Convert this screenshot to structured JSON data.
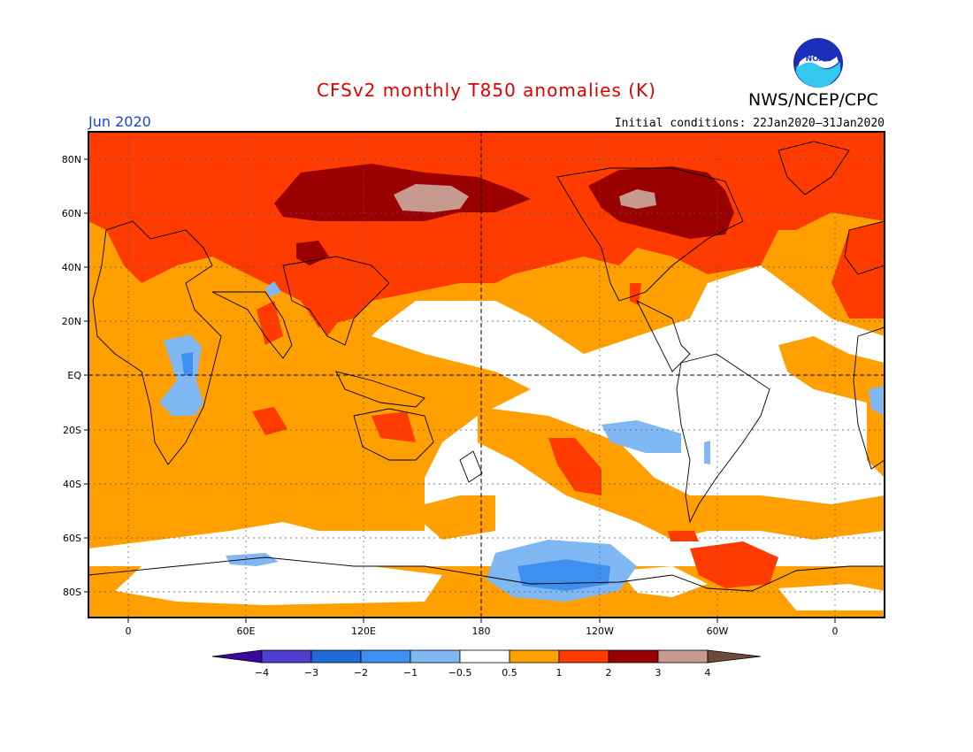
{
  "title": "CFSv2 monthly T850 anomalies (K)",
  "agency": "NWS/NCEP/CPC",
  "logo_text": "NOAA",
  "period": "Jun 2020",
  "initial_conditions": "Initial conditions: 22Jan2020–31Jan2020",
  "colors": {
    "title": "#e00000",
    "period": "#1a44e0",
    "bins": [
      "#3b0a9c",
      "#4f3fce",
      "#1f6ad8",
      "#3e90f0",
      "#80b8f4",
      "#ffffff",
      "#ff9f00",
      "#ff3b00",
      "#9a0000",
      "#c79a90",
      "#6e4a3a"
    ]
  },
  "map": {
    "lat_labels": [
      "80N",
      "60N",
      "40N",
      "20N",
      "EQ",
      "20S",
      "40S",
      "60S",
      "80S"
    ],
    "lon_labels": [
      "0",
      "60E",
      "120E",
      "180",
      "120W",
      "60W",
      "0"
    ]
  },
  "colorbar": {
    "tick_labels": [
      "−4",
      "−3",
      "−2",
      "−1",
      "−0.5",
      "0.5",
      "1",
      "2",
      "3",
      "4"
    ]
  }
}
